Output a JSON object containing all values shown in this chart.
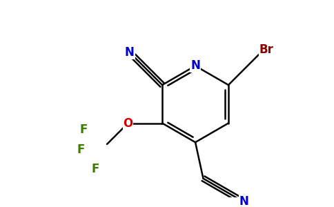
{
  "bg_color": "#ffffff",
  "atom_colors": {
    "N": "#0000cc",
    "O": "#cc0000",
    "F": "#3a7d00",
    "Br": "#8b0000",
    "C": "#000000"
  },
  "bond_color": "#000000",
  "bond_width": 1.8,
  "figsize": [
    4.84,
    3.0
  ],
  "dpi": 100
}
